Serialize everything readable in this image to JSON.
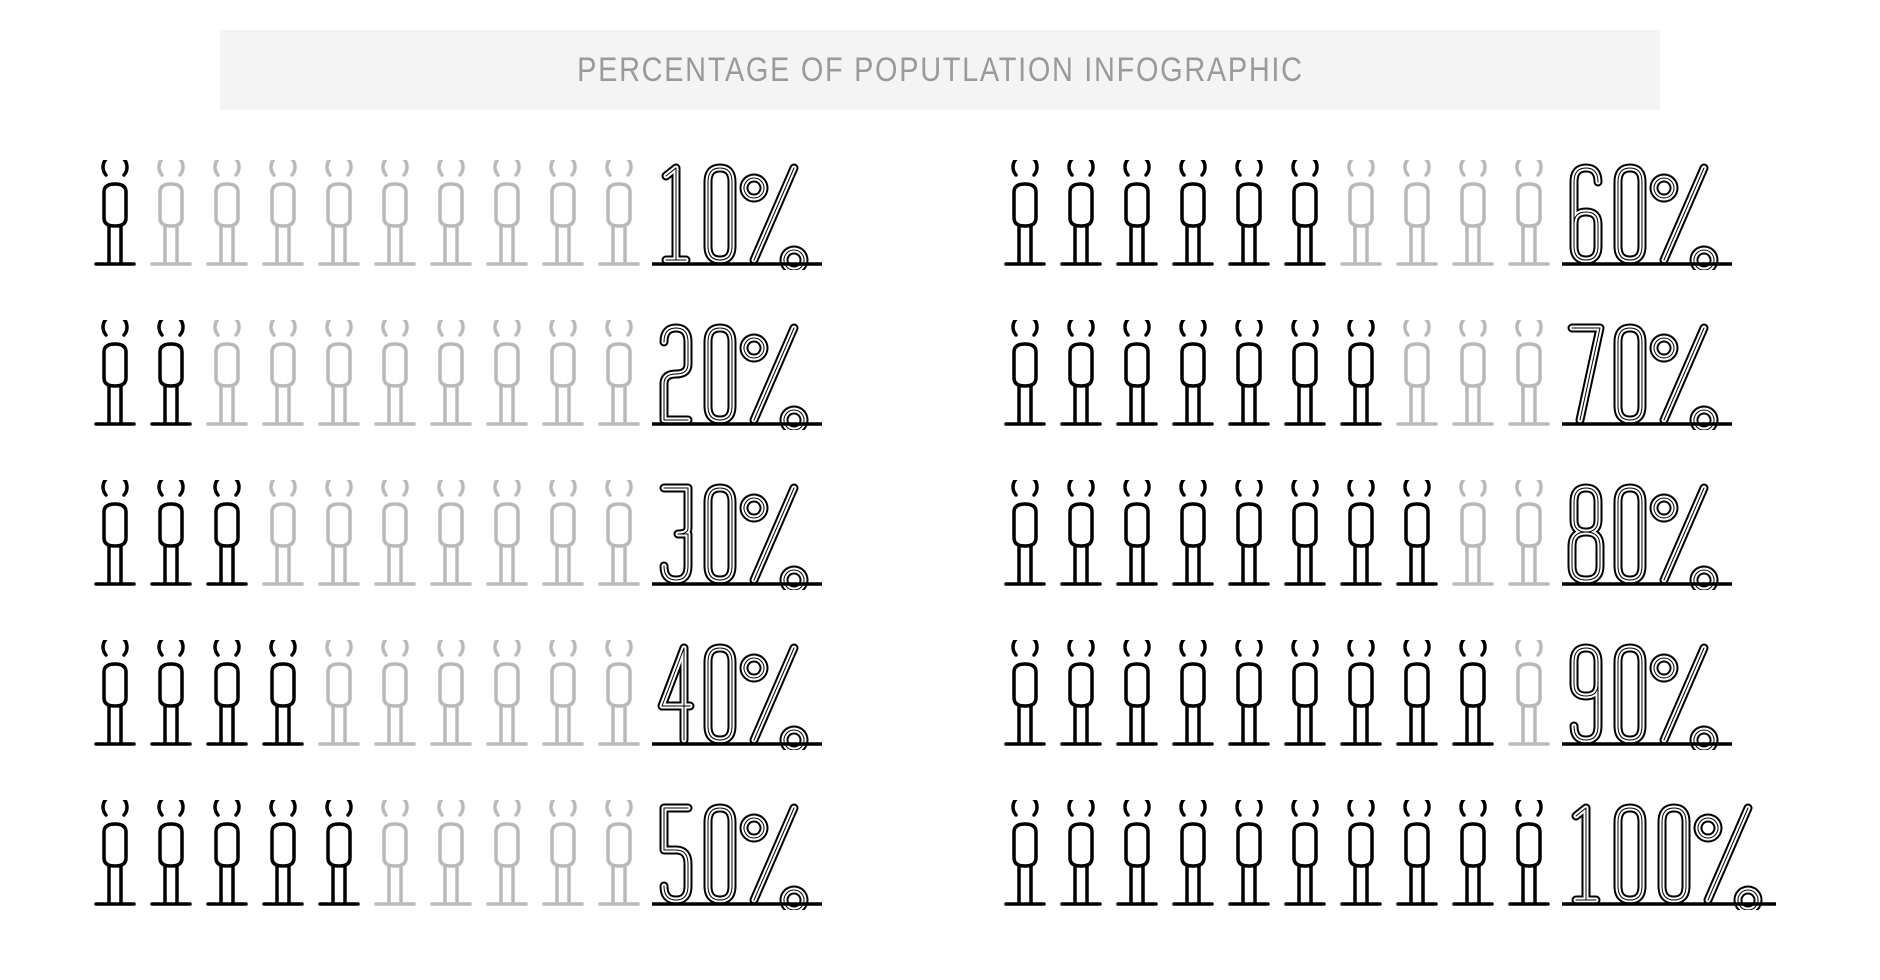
{
  "type": "infographic",
  "title": "PERCENTAGE OF POPUTLATION INFOGRAPHIC",
  "title_background": "#f4f4f4",
  "title_color": "#9a9a9a",
  "title_fontsize": 34,
  "background_color": "#ffffff",
  "icon_active_stroke": "#000000",
  "icon_inactive_stroke": "#b9b9b9",
  "label_stroke": "#000000",
  "label_fill": "#ffffff",
  "stroke_width": 3.5,
  "person_per_row": 10,
  "layout": "2 columns × 5 rows",
  "rows": [
    {
      "percent": 10,
      "filled": 1,
      "label": "10%"
    },
    {
      "percent": 20,
      "filled": 2,
      "label": "20%"
    },
    {
      "percent": 30,
      "filled": 3,
      "label": "30%"
    },
    {
      "percent": 40,
      "filled": 4,
      "label": "40%"
    },
    {
      "percent": 50,
      "filled": 5,
      "label": "50%"
    },
    {
      "percent": 60,
      "filled": 6,
      "label": "60%"
    },
    {
      "percent": 70,
      "filled": 7,
      "label": "70%"
    },
    {
      "percent": 80,
      "filled": 8,
      "label": "80%"
    },
    {
      "percent": 90,
      "filled": 9,
      "label": "90%"
    },
    {
      "percent": 100,
      "filled": 10,
      "label": "100%"
    }
  ]
}
